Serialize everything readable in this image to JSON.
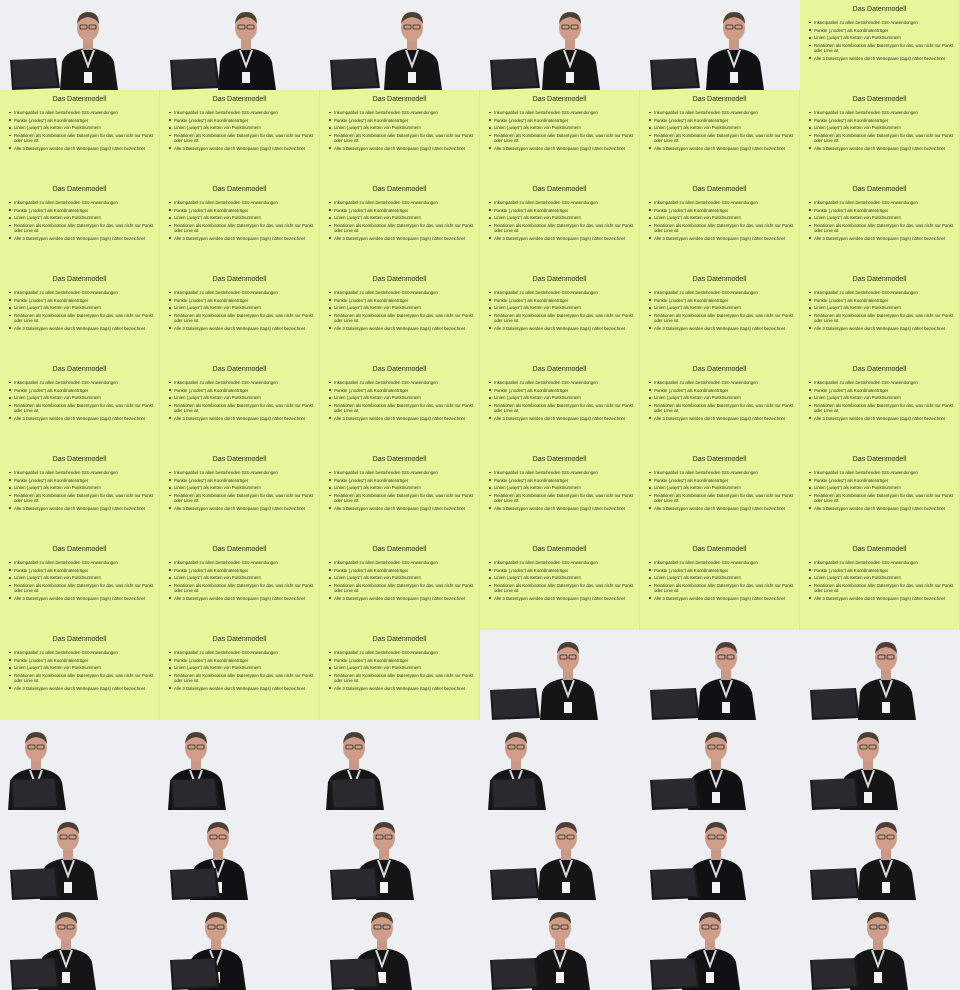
{
  "slide": {
    "title": "Das Datenmodell",
    "bullets": [
      "Inkompatibel zu allen bestehenden GIS-Anwendungen",
      "Punkte („nodes“) als Koordinatenträger",
      "Linien („ways“) als Ketten von Punktnummern",
      "Relationen als Kombination aller Datentypen für das, was nicht nur Punkt oder Linie ist",
      "Alle 3 Datentypen werden durch Wertepaare (tags) näher bezeichnet"
    ],
    "background_color": "#e6f79a"
  },
  "grid": {
    "columns": 6,
    "rows": 11,
    "frames": [
      "video",
      "video",
      "video",
      "video",
      "video",
      "slide",
      "slide",
      "slide",
      "slide",
      "slide",
      "slide",
      "slide",
      "slide",
      "slide",
      "slide",
      "slide",
      "slide",
      "slide",
      "slide",
      "slide",
      "slide",
      "slide",
      "slide",
      "slide",
      "slide",
      "slide",
      "slide",
      "slide",
      "slide",
      "slide",
      "slide",
      "slide",
      "slide",
      "slide",
      "slide",
      "slide",
      "slide",
      "slide",
      "slide",
      "slide",
      "slide",
      "slide",
      "slide",
      "slide",
      "slide",
      "video",
      "video",
      "video",
      "video",
      "video",
      "video",
      "video",
      "video",
      "video",
      "video",
      "video",
      "video",
      "video",
      "video",
      "video",
      "video",
      "video",
      "video",
      "video",
      "video",
      "video"
    ]
  },
  "video_frame": {
    "subject": "speaker-with-laptop",
    "shirt_color": "#151515",
    "laptop_color": "#1a1a1c",
    "background_color": "#eeeff2"
  }
}
